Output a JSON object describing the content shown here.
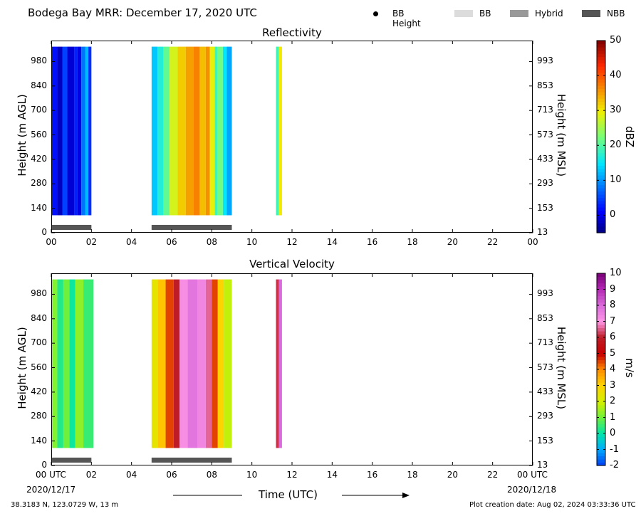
{
  "title": "Bodega Bay MRR:  December 17, 2020 UTC",
  "legend": {
    "items": [
      {
        "label": "BB Height",
        "marker": "dot",
        "color": "#000000"
      },
      {
        "label": "BB",
        "marker": "box",
        "color": "#dcdcdc"
      },
      {
        "label": "Hybrid",
        "marker": "box",
        "color": "#999999"
      },
      {
        "label": "NBB",
        "marker": "box",
        "color": "#555555"
      }
    ]
  },
  "chart_data": [
    {
      "type": "heatmap",
      "title": "Reflectivity",
      "ylabel": "Height (m AGL)",
      "ylabel_right": "Height (m MSL)",
      "x_ticks": [
        "00",
        "02",
        "04",
        "06",
        "08",
        "10",
        "12",
        "14",
        "16",
        "18",
        "20",
        "22",
        "00"
      ],
      "x_range_hours": [
        0,
        24
      ],
      "y_ticks_left": [
        "0",
        "140",
        "280",
        "420",
        "560",
        "700",
        "840",
        "980"
      ],
      "y_ticks_right": [
        "13",
        "153",
        "293",
        "433",
        "573",
        "713",
        "853",
        "993"
      ],
      "y_range_m_agl": [
        0,
        1100
      ],
      "colorbar": {
        "label": "dBZ",
        "ticks": [
          "0",
          "10",
          "20",
          "30",
          "40",
          "50"
        ],
        "range": [
          -5,
          50
        ],
        "palette": "jet"
      },
      "bands": [
        {
          "start": 0.0,
          "end": 0.3,
          "value": 2
        },
        {
          "start": 0.3,
          "end": 0.55,
          "value": -2
        },
        {
          "start": 0.55,
          "end": 0.8,
          "value": 5
        },
        {
          "start": 0.8,
          "end": 1.15,
          "value": -1
        },
        {
          "start": 1.15,
          "end": 1.3,
          "value": 3
        },
        {
          "start": 1.3,
          "end": 1.5,
          "value": 0
        },
        {
          "start": 1.5,
          "end": 1.7,
          "value": 8
        },
        {
          "start": 1.7,
          "end": 1.85,
          "value": 12
        },
        {
          "start": 1.85,
          "end": 2.0,
          "value": 4
        },
        {
          "start": 5.0,
          "end": 5.3,
          "value": 13
        },
        {
          "start": 5.3,
          "end": 5.6,
          "value": 17
        },
        {
          "start": 5.6,
          "end": 5.9,
          "value": 21
        },
        {
          "start": 5.9,
          "end": 6.3,
          "value": 28
        },
        {
          "start": 6.3,
          "end": 6.7,
          "value": 32
        },
        {
          "start": 6.7,
          "end": 7.1,
          "value": 35
        },
        {
          "start": 7.1,
          "end": 7.4,
          "value": 37
        },
        {
          "start": 7.4,
          "end": 7.7,
          "value": 33
        },
        {
          "start": 7.7,
          "end": 7.9,
          "value": 36
        },
        {
          "start": 7.9,
          "end": 8.15,
          "value": 29
        },
        {
          "start": 8.15,
          "end": 8.3,
          "value": 19
        },
        {
          "start": 8.3,
          "end": 8.55,
          "value": 22
        },
        {
          "start": 8.55,
          "end": 8.75,
          "value": 15
        },
        {
          "start": 8.75,
          "end": 9.0,
          "value": 11
        },
        {
          "start": 11.2,
          "end": 11.35,
          "value": 19
        },
        {
          "start": 11.35,
          "end": 11.5,
          "value": 30
        }
      ],
      "classification_bars": [
        {
          "start": 0.0,
          "end": 2.0,
          "class": "NBB"
        },
        {
          "start": 5.0,
          "end": 9.0,
          "class": "NBB"
        }
      ]
    },
    {
      "type": "heatmap",
      "title": "Vertical Velocity",
      "xlabel": "Time (UTC)",
      "ylabel": "Height (m AGL)",
      "ylabel_right": "Height (m MSL)",
      "x_ticks": [
        "00 UTC",
        "02",
        "04",
        "06",
        "08",
        "10",
        "12",
        "14",
        "16",
        "18",
        "20",
        "22",
        "00 UTC"
      ],
      "x_range_hours": [
        0,
        24
      ],
      "y_ticks_left": [
        "0",
        "140",
        "280",
        "420",
        "560",
        "700",
        "840",
        "980"
      ],
      "y_ticks_right": [
        "13",
        "153",
        "293",
        "433",
        "573",
        "713",
        "853",
        "993"
      ],
      "y_range_m_agl": [
        0,
        1100
      ],
      "date_start": "2020/12/17",
      "date_end": "2020/12/18",
      "colorbar": {
        "label": "m/s",
        "ticks": [
          "-2",
          "-1",
          "0",
          "1",
          "2",
          "3",
          "4",
          "5",
          "6",
          "7",
          "8",
          "9",
          "10"
        ],
        "range": [
          -2,
          10
        ],
        "palette": "velocity"
      },
      "bands": [
        {
          "start": 0.0,
          "end": 0.3,
          "value": 1.2
        },
        {
          "start": 0.3,
          "end": 0.6,
          "value": 0.3
        },
        {
          "start": 0.6,
          "end": 0.9,
          "value": 1.0
        },
        {
          "start": 0.9,
          "end": 1.2,
          "value": 0.1
        },
        {
          "start": 1.2,
          "end": 1.6,
          "value": 1.3
        },
        {
          "start": 1.6,
          "end": 2.1,
          "value": 0.5
        },
        {
          "start": 5.0,
          "end": 5.3,
          "value": 2.4
        },
        {
          "start": 5.3,
          "end": 5.7,
          "value": 3.2
        },
        {
          "start": 5.7,
          "end": 6.1,
          "value": 4.5
        },
        {
          "start": 6.1,
          "end": 6.4,
          "value": 6.0
        },
        {
          "start": 6.4,
          "end": 6.8,
          "value": 7.2
        },
        {
          "start": 6.8,
          "end": 7.3,
          "value": 7.8
        },
        {
          "start": 7.3,
          "end": 7.7,
          "value": 7.4
        },
        {
          "start": 7.7,
          "end": 8.0,
          "value": 6.6
        },
        {
          "start": 8.0,
          "end": 8.3,
          "value": 4.5
        },
        {
          "start": 8.3,
          "end": 8.6,
          "value": 3.0
        },
        {
          "start": 8.6,
          "end": 9.0,
          "value": 1.8
        },
        {
          "start": 11.2,
          "end": 11.35,
          "value": 6.2
        },
        {
          "start": 11.35,
          "end": 11.5,
          "value": 8.0
        }
      ],
      "classification_bars": [
        {
          "start": 0.0,
          "end": 2.0,
          "class": "NBB"
        },
        {
          "start": 5.0,
          "end": 9.0,
          "class": "NBB"
        }
      ]
    }
  ],
  "footer": {
    "coordinates": "38.3183 N, 123.0729 W, 13 m",
    "creation": "Plot creation date: Aug 02, 2024 03:33:36 UTC"
  }
}
